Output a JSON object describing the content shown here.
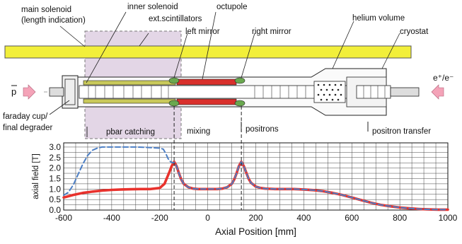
{
  "labels": {
    "main_solenoid_line1": "main solenoid",
    "main_solenoid_line2": "(length indication)",
    "inner_solenoid": "inner solenoid",
    "ext_scintillators": "ext.scintillators",
    "left_mirror": "left mirror",
    "octupole": "octupole",
    "right_mirror": "right mirror",
    "helium_volume": "helium volume",
    "cryostat": "cryostat",
    "pbar": "p",
    "positron_beam": "e⁺/e⁻",
    "faraday_line1": "faraday cup/",
    "faraday_line2": "final degrader"
  },
  "regions": {
    "pbar_catching": "pbar catching",
    "mixing": "mixing",
    "positrons": "positrons",
    "positron_transfer": "positron transfer"
  },
  "colors": {
    "solenoid": "#f2ef3a",
    "catching_box": "#d9c8dd",
    "field_total": "#e8322d",
    "field_with_inner": "#4d7fc4",
    "arrow": "#f4a3b8",
    "octupole": "#d9302c",
    "inner_solenoid": "#c9c95a"
  },
  "chart_data": {
    "type": "line",
    "xlabel": "Axial Position [mm]",
    "ylabel": "axial field [T]",
    "xlim": [
      -600,
      1000
    ],
    "ylim": [
      0,
      3.2
    ],
    "xticks": [
      -600,
      -400,
      -200,
      0,
      200,
      400,
      600,
      800,
      1000
    ],
    "yticks": [
      0.0,
      0.5,
      1.0,
      1.5,
      2.0,
      2.5,
      3.0
    ],
    "ytick_labels": [
      "0.0",
      "0.5",
      "1.0",
      "1.5",
      "2.0",
      "2.5",
      "3.0"
    ],
    "grid": true,
    "mirror_lines_x": [
      -140,
      140
    ],
    "series": [
      {
        "style": "solid",
        "color": "#e8322d",
        "x": [
          -600,
          -560,
          -520,
          -480,
          -440,
          -400,
          -360,
          -320,
          -280,
          -240,
          -200,
          -180,
          -160,
          -150,
          -140,
          -130,
          -120,
          -110,
          -100,
          -80,
          -60,
          -40,
          -20,
          0,
          20,
          40,
          60,
          80,
          100,
          110,
          120,
          130,
          140,
          150,
          160,
          170,
          180,
          200,
          220,
          240,
          280,
          320,
          360,
          400,
          440,
          480,
          520,
          560,
          600,
          640,
          680,
          720,
          760,
          800,
          840,
          880,
          920,
          960,
          1000
        ],
        "y": [
          0.6,
          0.72,
          0.82,
          0.88,
          0.93,
          0.96,
          0.98,
          0.99,
          1.0,
          1.0,
          1.05,
          1.25,
          1.8,
          2.1,
          2.3,
          2.1,
          1.75,
          1.45,
          1.25,
          1.08,
          1.02,
          1.0,
          1.0,
          1.0,
          1.0,
          1.0,
          1.02,
          1.08,
          1.25,
          1.45,
          1.75,
          2.1,
          2.3,
          2.1,
          1.8,
          1.5,
          1.3,
          1.12,
          1.05,
          1.02,
          1.0,
          1.0,
          1.0,
          0.98,
          0.95,
          0.9,
          0.82,
          0.72,
          0.6,
          0.47,
          0.35,
          0.25,
          0.18,
          0.12,
          0.08,
          0.05,
          0.03,
          0.02,
          0.02
        ]
      },
      {
        "style": "dashed",
        "color": "#4d7fc4",
        "x": [
          -600,
          -580,
          -560,
          -540,
          -520,
          -500,
          -480,
          -460,
          -440,
          -400,
          -300,
          -250,
          -200,
          -185,
          -175,
          -165,
          -155,
          -145,
          -140,
          -130,
          -120,
          -110,
          -100,
          -80,
          -60,
          -40,
          -20,
          0,
          20,
          40,
          60,
          80,
          100,
          110,
          120,
          130,
          140,
          150,
          160,
          170,
          180,
          200,
          220,
          240,
          280,
          320,
          360,
          400,
          440,
          480,
          520,
          560,
          600,
          640,
          680,
          720,
          760,
          800,
          840,
          880,
          920,
          960,
          1000
        ],
        "y": [
          0.7,
          0.85,
          1.2,
          1.7,
          2.2,
          2.6,
          2.85,
          2.95,
          3.0,
          3.0,
          3.0,
          2.98,
          2.95,
          2.9,
          2.7,
          2.45,
          2.3,
          2.25,
          2.28,
          2.1,
          1.75,
          1.45,
          1.25,
          1.08,
          1.02,
          1.0,
          1.0,
          1.0,
          1.0,
          1.0,
          1.02,
          1.08,
          1.25,
          1.45,
          1.75,
          2.1,
          2.3,
          2.1,
          1.8,
          1.5,
          1.3,
          1.12,
          1.05,
          1.02,
          1.0,
          1.0,
          1.0,
          0.98,
          0.95,
          0.9,
          0.82,
          0.72,
          0.6,
          0.47,
          0.35,
          0.25,
          0.18,
          0.12,
          0.08,
          0.05,
          0.03,
          0.02,
          0.02
        ]
      }
    ]
  }
}
